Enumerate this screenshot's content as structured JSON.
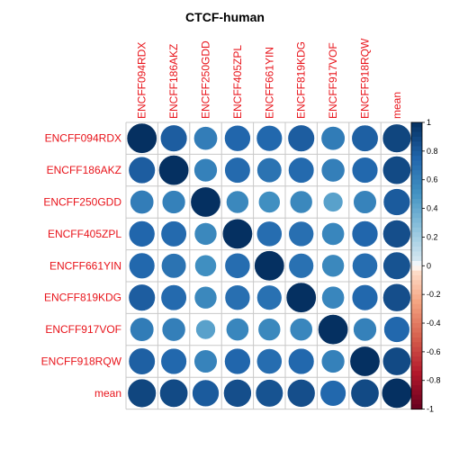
{
  "chart_data": {
    "type": "heatmap",
    "title": "CTCF-human",
    "rows": [
      "ENCFF094RDX",
      "ENCFF186AKZ",
      "ENCFF250GDD",
      "ENCFF405ZPL",
      "ENCFF661YIN",
      "ENCFF819KDG",
      "ENCFF917VOF",
      "ENCFF918RQW",
      "mean"
    ],
    "columns": [
      "ENCFF094RDX",
      "ENCFF186AKZ",
      "ENCFF250GDD",
      "ENCFF405ZPL",
      "ENCFF661YIN",
      "ENCFF819KDG",
      "ENCFF917VOF",
      "ENCFF918RQW",
      "mean"
    ],
    "values": [
      [
        1.0,
        0.79,
        0.62,
        0.75,
        0.74,
        0.79,
        0.63,
        0.78,
        0.9
      ],
      [
        0.79,
        1.0,
        0.6,
        0.73,
        0.68,
        0.73,
        0.61,
        0.74,
        0.88
      ],
      [
        0.62,
        0.6,
        1.0,
        0.56,
        0.52,
        0.56,
        0.43,
        0.59,
        0.8
      ],
      [
        0.75,
        0.73,
        0.56,
        1.0,
        0.71,
        0.7,
        0.57,
        0.75,
        0.86
      ],
      [
        0.74,
        0.68,
        0.52,
        0.71,
        1.0,
        0.69,
        0.56,
        0.71,
        0.84
      ],
      [
        0.79,
        0.73,
        0.56,
        0.7,
        0.69,
        1.0,
        0.57,
        0.74,
        0.86
      ],
      [
        0.63,
        0.61,
        0.43,
        0.57,
        0.56,
        0.57,
        1.0,
        0.6,
        0.74
      ],
      [
        0.78,
        0.74,
        0.59,
        0.75,
        0.71,
        0.74,
        0.6,
        1.0,
        0.88
      ],
      [
        0.9,
        0.88,
        0.8,
        0.86,
        0.84,
        0.86,
        0.74,
        0.88,
        1.0
      ]
    ],
    "colorbar": {
      "range": [
        -1,
        1
      ],
      "ticks": [
        "1",
        "0.8",
        "0.6",
        "0.4",
        "0.2",
        "0",
        "-0.2",
        "-0.4",
        "-0.6",
        "-0.8",
        "-1"
      ]
    },
    "colors": {
      "label": "#e8131a",
      "negative": "#67001f",
      "zero": "#ffffff",
      "positive": "#053061",
      "grid": "#c8c8c8"
    }
  }
}
